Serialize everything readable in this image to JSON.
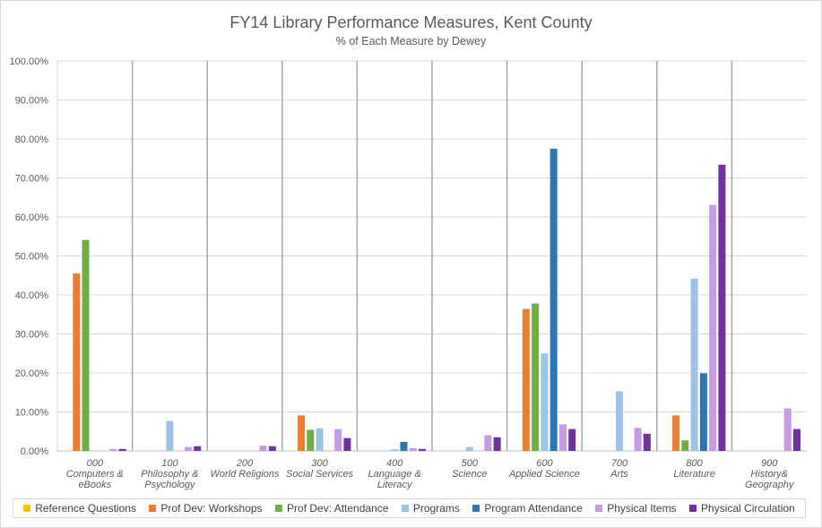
{
  "chart_data": {
    "type": "bar",
    "title": "FY14 Library Performance Measures, Kent County",
    "subtitle": "% of Each Measure by Dewey",
    "ylim": [
      0,
      100
    ],
    "y_ticks": [
      "0.00%",
      "10.00%",
      "20.00%",
      "30.00%",
      "40.00%",
      "50.00%",
      "60.00%",
      "70.00%",
      "80.00%",
      "90.00%",
      "100.00%"
    ],
    "categories": [
      [
        "000",
        "Computers &",
        "eBooks"
      ],
      [
        "100",
        "Philosophy &",
        "Psychology"
      ],
      [
        "200",
        "World Religions"
      ],
      [
        "300",
        "Social Services"
      ],
      [
        "400",
        "Language &",
        "Literacy"
      ],
      [
        "500",
        "Science"
      ],
      [
        "600",
        "Applied Science"
      ],
      [
        "700",
        "Arts"
      ],
      [
        "800",
        "Literature"
      ],
      [
        "900",
        "History&",
        "Geography"
      ]
    ],
    "series": [
      {
        "name": "Reference Questions",
        "color": "#ffc000",
        "values": [
          0,
          0,
          0,
          0,
          0,
          0,
          0,
          0,
          0,
          0
        ]
      },
      {
        "name": "Prof Dev: Workshops",
        "color": "#ed7d31",
        "values": [
          45.5,
          0,
          0,
          9.1,
          0,
          0,
          36.4,
          0,
          9.1,
          0
        ]
      },
      {
        "name": "Prof Dev: Attendance",
        "color": "#70ad47",
        "values": [
          54.1,
          0,
          0,
          5.4,
          0,
          0,
          37.8,
          0,
          2.7,
          0
        ]
      },
      {
        "name": "Programs",
        "color": "#9dc3e6",
        "values": [
          0,
          7.7,
          0,
          5.8,
          0.4,
          1.0,
          25.0,
          15.3,
          44.2,
          0
        ]
      },
      {
        "name": "Program Attendance",
        "color": "#2e75b6",
        "values": [
          0,
          0,
          0,
          0,
          2.3,
          0,
          77.5,
          0,
          19.9,
          0
        ]
      },
      {
        "name": "Physical Items",
        "color": "#c59be3",
        "values": [
          0.5,
          1.0,
          1.3,
          5.6,
          0.7,
          4.0,
          6.8,
          5.9,
          63.1,
          10.9
        ]
      },
      {
        "name": "Physical Circulation",
        "color": "#7030a0",
        "values": [
          0.5,
          1.2,
          1.2,
          3.3,
          0.5,
          3.5,
          5.6,
          4.4,
          73.4,
          5.6
        ]
      }
    ]
  }
}
